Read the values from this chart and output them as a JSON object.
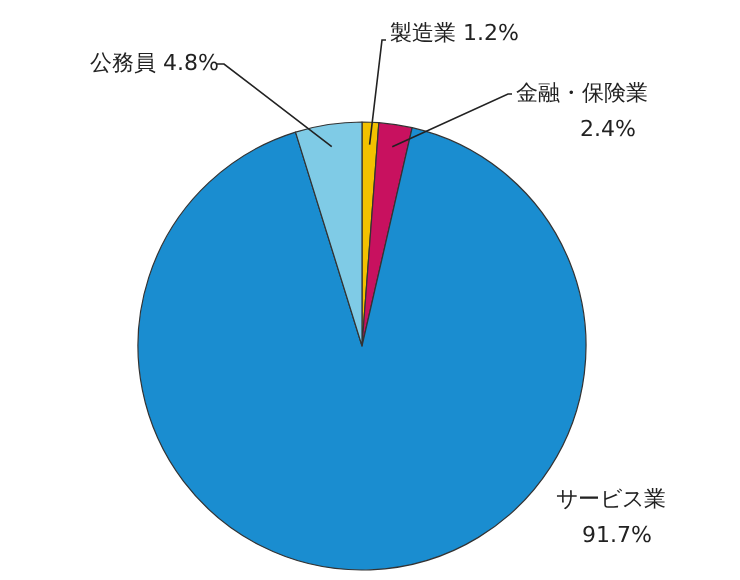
{
  "chart_data": {
    "type": "pie",
    "categories": [
      "製造業",
      "金融・保険業",
      "サービス業",
      "公務員"
    ],
    "values": [
      1.2,
      2.4,
      91.7,
      4.8
    ],
    "value_labels": [
      "1.2%",
      "2.4%",
      "91.7%",
      "4.8%"
    ],
    "colors": [
      "#f2c100",
      "#c8115f",
      "#1a8dd0",
      "#7fcbe6"
    ]
  }
}
